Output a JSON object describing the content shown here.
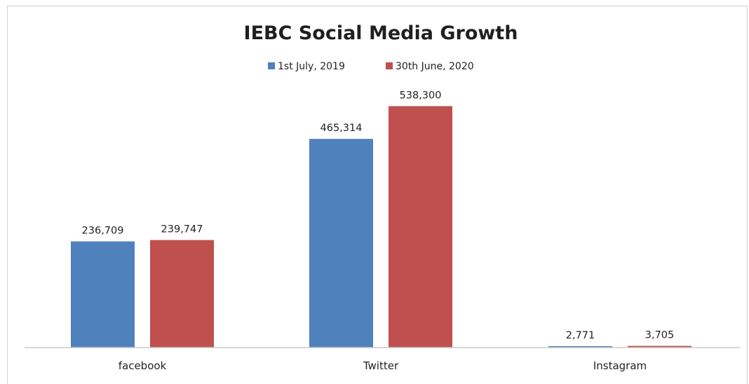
{
  "chart_data": {
    "type": "bar",
    "title": "IEBC Social Media Growth",
    "categories": [
      "facebook",
      "Twitter",
      "Instagram"
    ],
    "series": [
      {
        "name": "1st July, 2019",
        "color": "#4f81bd",
        "values": [
          236709,
          465314,
          2771
        ],
        "labels": [
          "236,709",
          "465,314",
          "2,771"
        ]
      },
      {
        "name": "30th June, 2020",
        "color": "#c0504d",
        "values": [
          239747,
          538300,
          3705
        ],
        "labels": [
          "239,747",
          "538,300",
          "3,705"
        ]
      }
    ],
    "ylim": [
      0,
      600000
    ],
    "grid": false,
    "legend_position": "top-center",
    "data_labels": true
  }
}
